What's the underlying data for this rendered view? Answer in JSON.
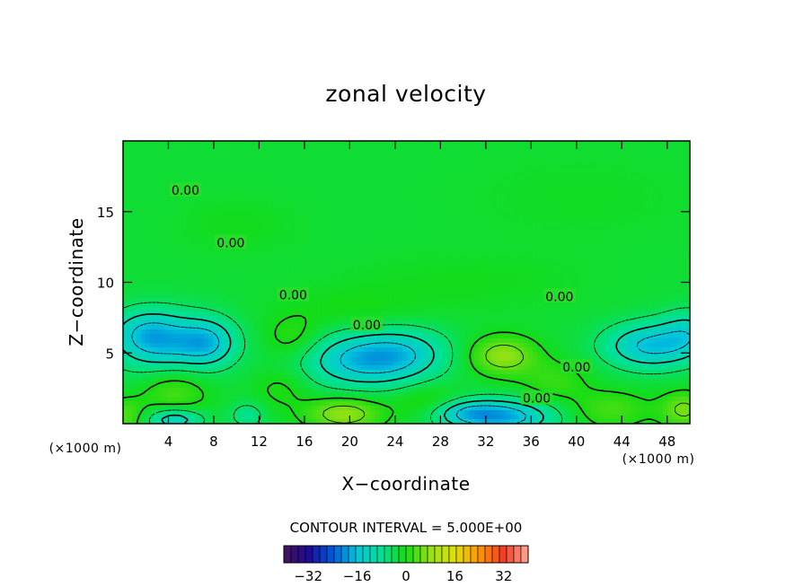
{
  "chart_data": {
    "type": "heatmap",
    "title": "zonal velocity",
    "xlabel": "X−coordinate",
    "ylabel": "Z−coordinate",
    "x_unit": "(×1000 m)",
    "y_unit": "(×1000 m)",
    "xlim": [
      0,
      50
    ],
    "ylim": [
      0,
      20
    ],
    "x_ticks": [
      4,
      8,
      12,
      16,
      20,
      24,
      28,
      32,
      36,
      40,
      44,
      48
    ],
    "x_tick_labels": [
      "4",
      "8",
      "12",
      "16",
      "20",
      "24",
      "28",
      "32",
      "36",
      "40",
      "44",
      "48"
    ],
    "y_ticks": [
      5,
      10,
      15
    ],
    "y_tick_labels": [
      "5",
      "10",
      "15"
    ],
    "contour_interval_text": "CONTOUR INTERVAL = 5.000E+00",
    "contour_labels": [
      {
        "text": "0.00",
        "x": 5.5,
        "y": 16.5
      },
      {
        "text": "0.00",
        "x": 9.5,
        "y": 12.8
      },
      {
        "text": "0.00",
        "x": 15.0,
        "y": 9.1
      },
      {
        "text": "0.00",
        "x": 21.5,
        "y": 7.0
      },
      {
        "text": "0.00",
        "x": 38.5,
        "y": 9.0
      },
      {
        "text": "0.00",
        "x": 40.0,
        "y": 4.0
      },
      {
        "text": "0.00",
        "x": 36.5,
        "y": 1.8
      }
    ],
    "colorbar": {
      "range": [
        -40,
        40
      ],
      "ticks": [
        -32,
        -16,
        0,
        16,
        32
      ],
      "tick_labels": [
        "−32",
        "−16",
        "0",
        "16",
        "32"
      ]
    },
    "features": [
      {
        "x": 4.0,
        "y": 5.5,
        "value": -12,
        "sx": 4.5,
        "sy": 2.2
      },
      {
        "x": 7.5,
        "y": 5.8,
        "value": -10,
        "sx": 2.5,
        "sy": 1.6
      },
      {
        "x": 2.0,
        "y": 6.5,
        "value": -8,
        "sx": 3.0,
        "sy": 1.6
      },
      {
        "x": 21.0,
        "y": 4.5,
        "value": -14,
        "sx": 5.0,
        "sy": 1.9
      },
      {
        "x": 25.0,
        "y": 5.0,
        "value": -8,
        "sx": 4.0,
        "sy": 1.8
      },
      {
        "x": 46.5,
        "y": 5.5,
        "value": -14,
        "sx": 4.0,
        "sy": 1.6
      },
      {
        "x": 50.0,
        "y": 6.5,
        "value": -8,
        "sx": 2.5,
        "sy": 1.6
      },
      {
        "x": 33.5,
        "y": 0.5,
        "value": -16,
        "sx": 4.5,
        "sy": 1.2
      },
      {
        "x": 30.0,
        "y": 0.8,
        "value": -8,
        "sx": 3.0,
        "sy": 0.9
      },
      {
        "x": 4.5,
        "y": 0.3,
        "value": -12,
        "sx": 2.5,
        "sy": 0.8
      },
      {
        "x": 11.0,
        "y": 0.6,
        "value": -6,
        "sx": 1.5,
        "sy": 0.9
      },
      {
        "x": 15.0,
        "y": 6.0,
        "value": 4,
        "sx": 2.5,
        "sy": 1.5
      },
      {
        "x": 33.5,
        "y": 4.8,
        "value": 10,
        "sx": 2.8,
        "sy": 1.3
      },
      {
        "x": 38.0,
        "y": 3.0,
        "value": 4,
        "sx": 3.0,
        "sy": 1.5
      },
      {
        "x": 4.5,
        "y": 2.5,
        "value": 6,
        "sx": 3.0,
        "sy": 2.0
      },
      {
        "x": 19.5,
        "y": 0.7,
        "value": 10,
        "sx": 3.2,
        "sy": 1.1
      },
      {
        "x": 0.0,
        "y": 0.5,
        "value": 6,
        "sx": 2.0,
        "sy": 1.2
      },
      {
        "x": 27.0,
        "y": 1.5,
        "value": 4,
        "sx": 3.0,
        "sy": 1.2
      },
      {
        "x": 43.0,
        "y": 1.0,
        "value": 5,
        "sx": 3.5,
        "sy": 1.3
      },
      {
        "x": 49.5,
        "y": 1.0,
        "value": 8,
        "sx": 2.0,
        "sy": 1.2
      },
      {
        "x": 14.0,
        "y": 2.5,
        "value": 3,
        "sx": 2.5,
        "sy": 1.5
      },
      {
        "x": 20.0,
        "y": 8.0,
        "value": 2,
        "sx": 6.0,
        "sy": 1.5
      },
      {
        "x": 30.0,
        "y": 10.0,
        "value": 1.5,
        "sx": 10.0,
        "sy": 2.0
      },
      {
        "x": 10.0,
        "y": 14.0,
        "value": 1.5,
        "sx": 5.0,
        "sy": 2.0
      },
      {
        "x": 40.0,
        "y": 16.0,
        "value": 1.0,
        "sx": 10.0,
        "sy": 3.0
      }
    ],
    "bg_value": -2,
    "grid": false,
    "legend": "colorbar at bottom"
  }
}
